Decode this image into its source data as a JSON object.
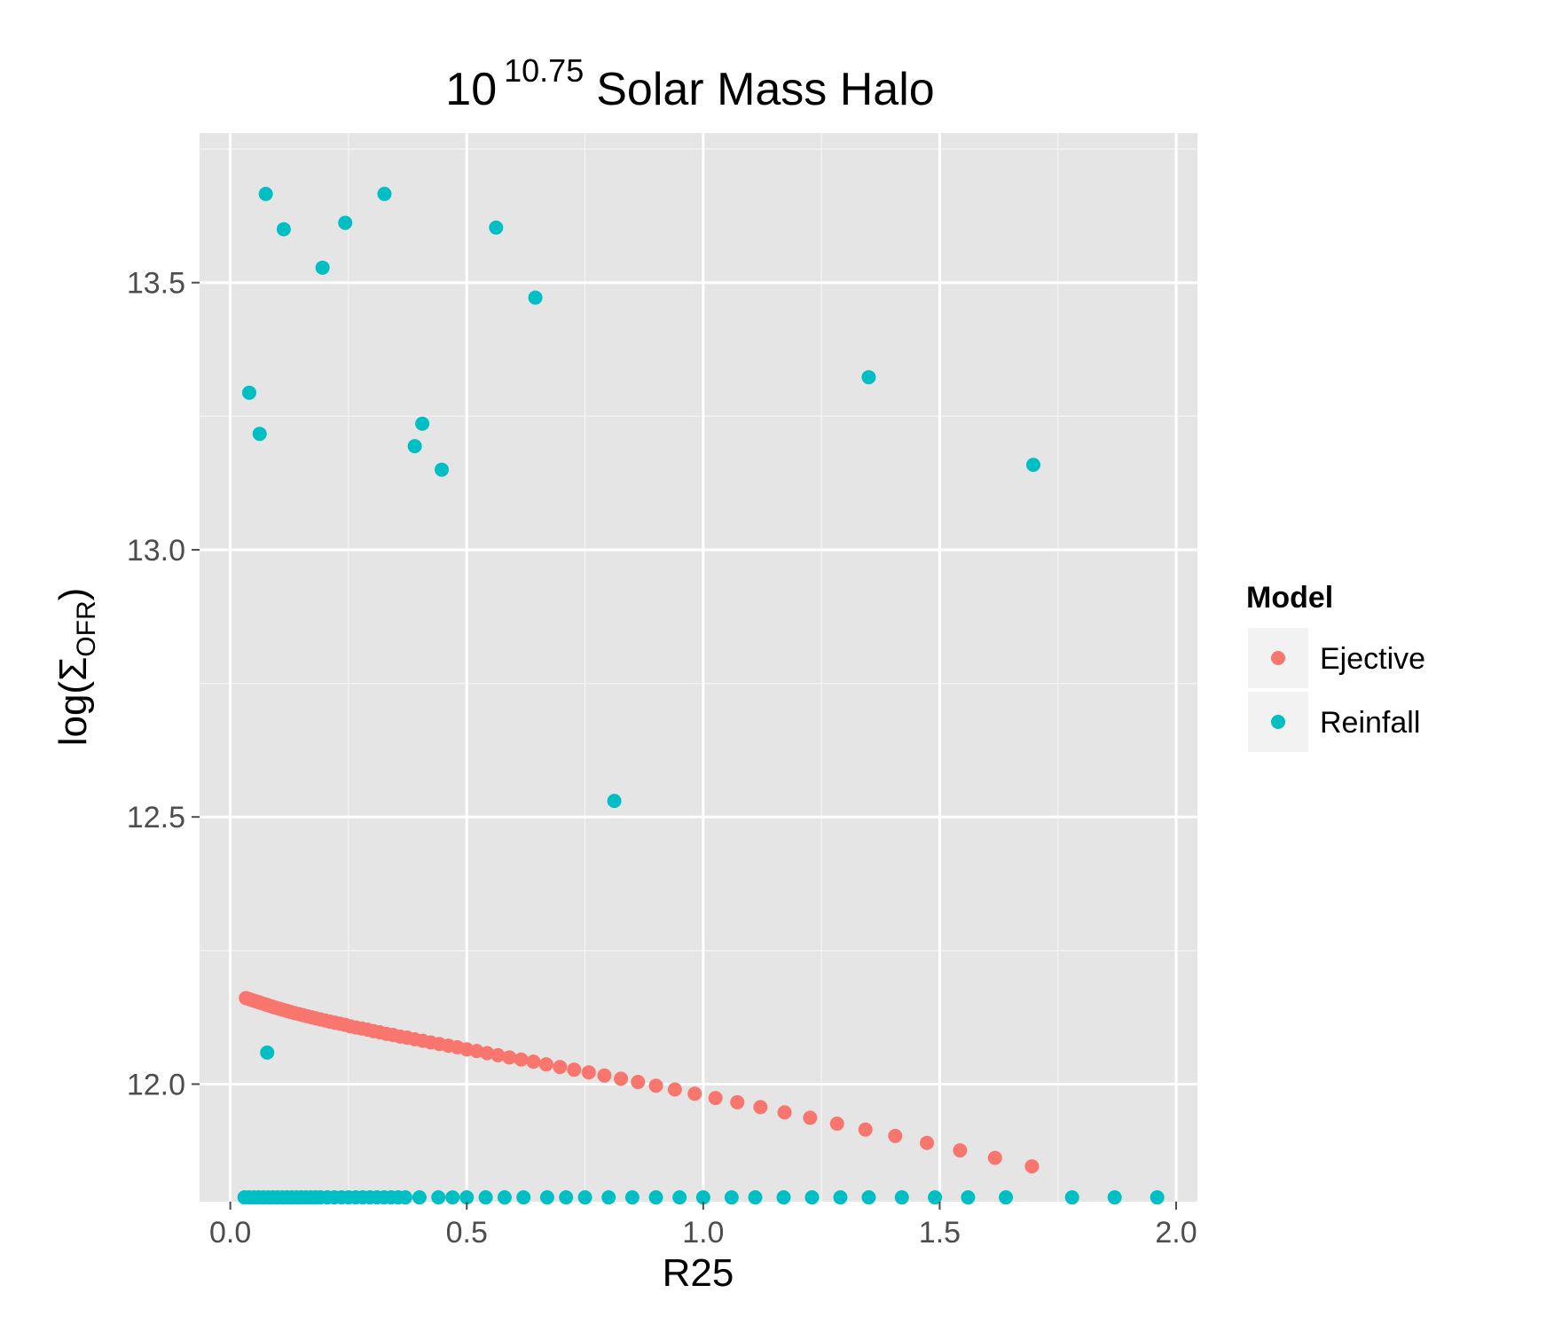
{
  "chart_data": {
    "type": "scatter",
    "title": {
      "base": "10",
      "exponent": "10.75",
      "suffix": "Solar Mass Halo"
    },
    "xlabel": "R25",
    "ylabel": {
      "prefix": "log(",
      "symbol": "Σ",
      "subscript": "OFR",
      "suffix": ")"
    },
    "xlim": [
      -0.065,
      2.045
    ],
    "ylim": [
      11.78,
      13.78
    ],
    "x_ticks": [
      0.0,
      0.5,
      1.0,
      1.5,
      2.0
    ],
    "x_tick_labels": [
      "0.0",
      "0.5",
      "1.0",
      "1.5",
      "2.0"
    ],
    "y_ticks": [
      12.0,
      12.5,
      13.0,
      13.5
    ],
    "y_tick_labels": [
      "12.0",
      "12.5",
      "13.0",
      "13.5"
    ],
    "grid": true,
    "panel_background": "#e5e5e5",
    "legend": {
      "title": "Model",
      "position": "right",
      "entries": [
        "Ejective",
        "Reinfall"
      ]
    },
    "series": [
      {
        "name": "Ejective",
        "color": "#f8766d",
        "x": [
          0.033,
          0.04,
          0.047,
          0.054,
          0.061,
          0.068,
          0.075,
          0.082,
          0.089,
          0.096,
          0.104,
          0.112,
          0.12,
          0.128,
          0.136,
          0.145,
          0.154,
          0.163,
          0.172,
          0.181,
          0.191,
          0.201,
          0.211,
          0.221,
          0.232,
          0.243,
          0.254,
          0.266,
          0.278,
          0.29,
          0.303,
          0.316,
          0.33,
          0.344,
          0.359,
          0.374,
          0.39,
          0.407,
          0.424,
          0.442,
          0.461,
          0.48,
          0.5,
          0.521,
          0.543,
          0.566,
          0.59,
          0.615,
          0.641,
          0.668,
          0.697,
          0.727,
          0.758,
          0.791,
          0.826,
          0.862,
          0.9,
          0.94,
          0.982,
          1.026,
          1.072,
          1.121,
          1.172,
          1.226,
          1.283,
          1.343,
          1.406,
          1.473,
          1.543,
          1.617,
          1.695
        ],
        "y": [
          12.161,
          12.159,
          12.157,
          12.155,
          12.153,
          12.151,
          12.149,
          12.147,
          12.145,
          12.143,
          12.141,
          12.139,
          12.137,
          12.135,
          12.133,
          12.131,
          12.129,
          12.127,
          12.125,
          12.123,
          12.121,
          12.119,
          12.117,
          12.115,
          12.113,
          12.111,
          12.108,
          12.106,
          12.104,
          12.102,
          12.099,
          12.097,
          12.094,
          12.092,
          12.089,
          12.087,
          12.084,
          12.081,
          12.078,
          12.075,
          12.072,
          12.069,
          12.065,
          12.062,
          12.058,
          12.054,
          12.05,
          12.046,
          12.042,
          12.037,
          12.032,
          12.027,
          12.022,
          12.016,
          12.01,
          12.004,
          11.997,
          11.99,
          11.982,
          11.974,
          11.966,
          11.957,
          11.947,
          11.937,
          11.926,
          11.915,
          11.903,
          11.89,
          11.876,
          11.862,
          11.846
        ]
      },
      {
        "name": "Reinfall",
        "color": "#00bfc4",
        "x": [
          0.075,
          0.113,
          0.243,
          0.326,
          0.562,
          0.195,
          0.645,
          0.04,
          1.35,
          0.406,
          0.062,
          0.39,
          1.698,
          0.447,
          0.812,
          0.078,
          0.03,
          0.04,
          0.05,
          0.06,
          0.07,
          0.08,
          0.09,
          0.1,
          0.11,
          0.12,
          0.13,
          0.14,
          0.15,
          0.16,
          0.17,
          0.18,
          0.19,
          0.205,
          0.22,
          0.235,
          0.25,
          0.265,
          0.28,
          0.295,
          0.31,
          0.325,
          0.34,
          0.355,
          0.37,
          0.4,
          0.44,
          0.47,
          0.5,
          0.54,
          0.58,
          0.62,
          0.67,
          0.71,
          0.75,
          0.8,
          0.85,
          0.9,
          0.95,
          1.0,
          1.06,
          1.11,
          1.17,
          1.23,
          1.29,
          1.35,
          1.42,
          1.49,
          1.56,
          1.64,
          1.78,
          1.87,
          1.96
        ],
        "y": [
          13.666,
          13.6,
          13.612,
          13.666,
          13.603,
          13.528,
          13.472,
          13.294,
          13.323,
          13.236,
          13.217,
          13.194,
          13.159,
          13.15,
          12.53,
          12.059,
          11.788,
          11.788,
          11.788,
          11.788,
          11.788,
          11.788,
          11.788,
          11.788,
          11.788,
          11.788,
          11.788,
          11.788,
          11.788,
          11.788,
          11.788,
          11.788,
          11.788,
          11.788,
          11.788,
          11.788,
          11.788,
          11.788,
          11.788,
          11.788,
          11.788,
          11.788,
          11.788,
          11.788,
          11.788,
          11.788,
          11.788,
          11.788,
          11.788,
          11.788,
          11.788,
          11.788,
          11.788,
          11.788,
          11.788,
          11.788,
          11.788,
          11.788,
          11.788,
          11.788,
          11.788,
          11.788,
          11.788,
          11.788,
          11.788,
          11.788,
          11.788,
          11.788,
          11.788,
          11.788,
          11.788,
          11.788,
          11.788
        ]
      }
    ]
  }
}
